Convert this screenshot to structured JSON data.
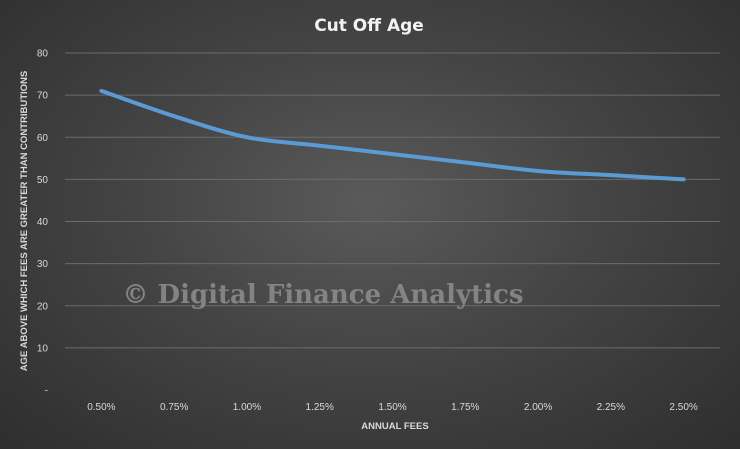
{
  "chart_data": {
    "type": "line",
    "title": "Cut Off Age",
    "xlabel": "ANNUAL FEES",
    "ylabel": "AGE ABOVE WHICH FEES ARE GREATER THAN CONTRIBUTIONS",
    "categories": [
      "0.50%",
      "0.75%",
      "1.00%",
      "1.25%",
      "1.50%",
      "1.75%",
      "2.00%",
      "2.25%",
      "2.50%"
    ],
    "series": [
      {
        "values": [
          71,
          65,
          60,
          58,
          56,
          54,
          52,
          51,
          50
        ]
      }
    ],
    "yticks": [
      "-",
      "10",
      "20",
      "30",
      "40",
      "50",
      "60",
      "70",
      "80"
    ],
    "ylim": [
      0,
      80
    ],
    "grid": true,
    "legend": "none",
    "colors": {
      "line": "#5b9bd5",
      "grid": "#6b6b6b",
      "text": "#d9d9d9"
    }
  },
  "watermark": "© Digital Finance Analytics"
}
